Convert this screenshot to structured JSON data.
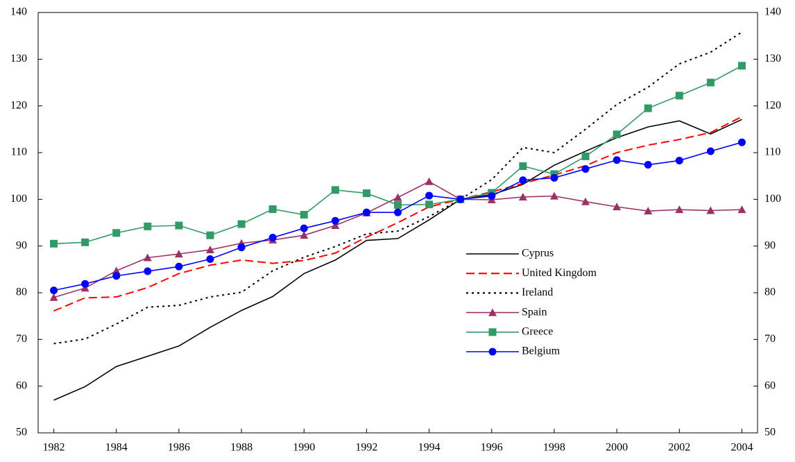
{
  "chart_data": {
    "type": "line",
    "x": [
      1982,
      1983,
      1984,
      1985,
      1986,
      1987,
      1988,
      1989,
      1990,
      1991,
      1992,
      1993,
      1994,
      1995,
      1996,
      1997,
      1998,
      1999,
      2000,
      2001,
      2002,
      2003,
      2004
    ],
    "series": [
      {
        "name": "Cyprus",
        "color": "#000000",
        "dash": "solid",
        "marker": "none",
        "values": [
          57,
          59.9,
          64.2,
          66.4,
          68.6,
          72.6,
          76.2,
          79.2,
          84.1,
          87,
          91.2,
          91.6,
          95.6,
          100,
          101,
          103.2,
          107.3,
          110.3,
          113.2,
          115.5,
          116.8,
          114,
          117.1
        ]
      },
      {
        "name": "United Kingdom",
        "color": "#ff0000",
        "dash": "dashed",
        "marker": "none",
        "values": [
          76.1,
          78.9,
          79.1,
          81.1,
          84.1,
          85.9,
          87,
          86.3,
          86.9,
          88.5,
          91.9,
          95,
          98.4,
          100,
          101.6,
          103.4,
          105.2,
          107.2,
          110,
          111.6,
          112.8,
          114.3,
          117.7
        ]
      },
      {
        "name": "Ireland",
        "color": "#000000",
        "dash": "dotted",
        "marker": "none",
        "values": [
          69.1,
          70.1,
          73.3,
          76.9,
          77.3,
          79.1,
          80.1,
          84.7,
          87.6,
          89.9,
          92.6,
          93.2,
          96.3,
          100,
          104.2,
          111.1,
          110,
          115,
          120.3,
          124,
          129,
          131.5,
          135.8
        ]
      },
      {
        "name": "Spain",
        "color": "#993366",
        "dash": "solid",
        "marker": "triangle",
        "values": [
          79,
          81,
          84.7,
          87.5,
          88.3,
          89.2,
          90.6,
          91.3,
          92.3,
          94.4,
          97.1,
          100.4,
          103.8,
          100,
          99.9,
          100.5,
          100.7,
          99.5,
          98.4,
          97.5,
          97.8,
          97.6,
          97.8
        ]
      },
      {
        "name": "Greece",
        "color": "#339966",
        "dash": "solid",
        "marker": "square",
        "values": [
          90.5,
          90.8,
          92.8,
          94.2,
          94.4,
          92.3,
          94.7,
          97.9,
          96.7,
          102,
          101.3,
          98.8,
          98.9,
          100,
          101.4,
          107.1,
          105.4,
          109.2,
          113.9,
          119.5,
          122.2,
          125,
          128.6
        ]
      },
      {
        "name": "Belgium",
        "color": "#0000ff",
        "dash": "solid",
        "marker": "circle",
        "values": [
          80.5,
          81.9,
          83.6,
          84.6,
          85.6,
          87.2,
          89.7,
          91.8,
          93.8,
          95.4,
          97.2,
          97.2,
          100.8,
          100,
          100.7,
          104.1,
          104.6,
          106.5,
          108.4,
          107.4,
          108.3,
          110.3,
          112.2
        ]
      }
    ],
    "xlim": [
      1981.5,
      2004.5
    ],
    "xticks": [
      1982,
      1984,
      1986,
      1988,
      1990,
      1992,
      1994,
      1996,
      1998,
      2000,
      2002,
      2004
    ],
    "ylim": [
      50,
      140
    ],
    "yticks": [
      50,
      60,
      70,
      80,
      90,
      100,
      110,
      120,
      130,
      140
    ],
    "y2lim": [
      50,
      140
    ],
    "y2ticks": [
      50,
      60,
      70,
      80,
      90,
      100,
      110,
      120,
      130,
      140
    ],
    "grid": false
  }
}
